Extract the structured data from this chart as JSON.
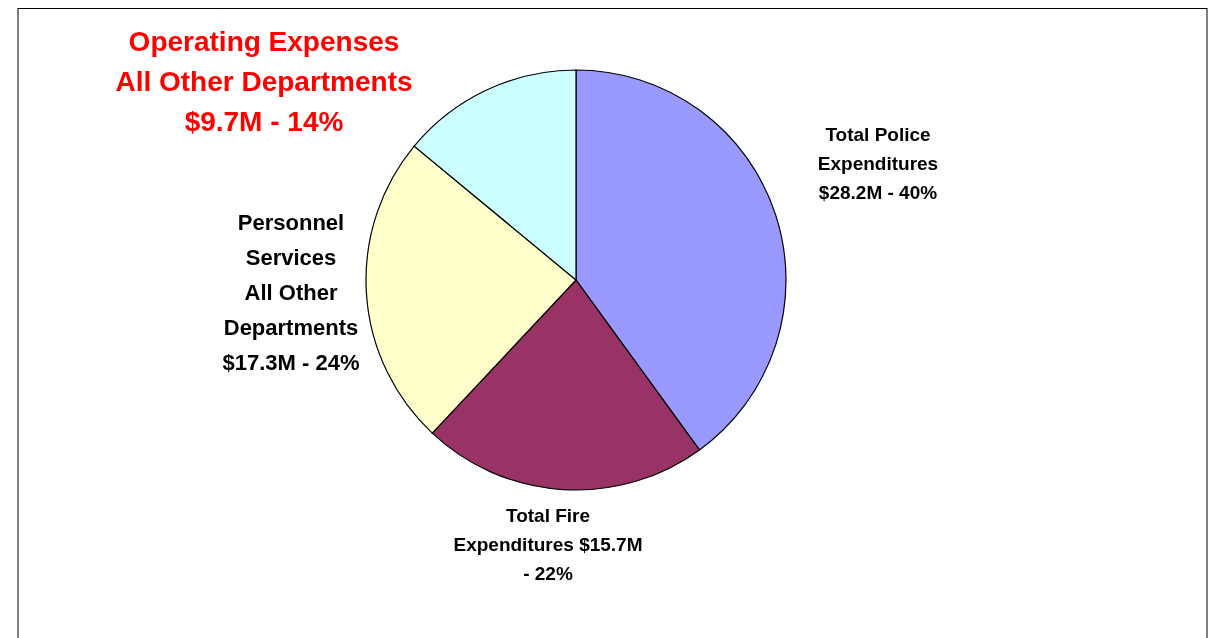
{
  "chart_data": {
    "type": "pie",
    "categories": [
      "Total Police Expenditures $28.2M - 40%",
      "Total Fire Expenditures $15.7M - 22%",
      "Personnel Services All Other Departments $17.3M - 24%",
      "Operating Expenses All Other Departments $9.7M - 14%"
    ],
    "values": [
      40,
      22,
      24,
      14
    ],
    "colors": [
      "#9999ff",
      "#993366",
      "#ffffcc",
      "#ccffff"
    ]
  }
}
